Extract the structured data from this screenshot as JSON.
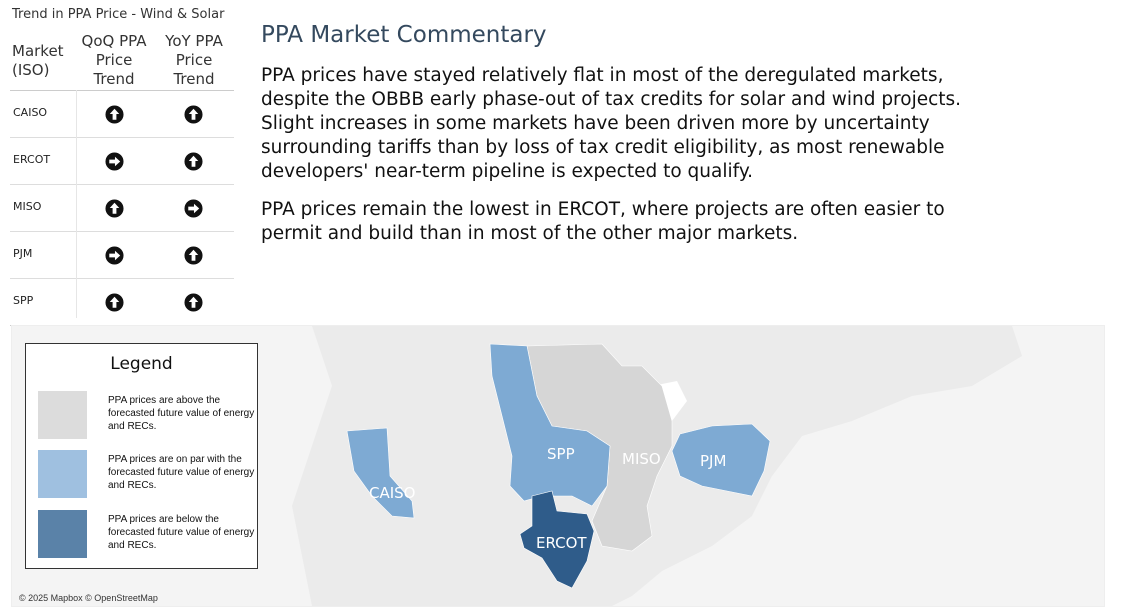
{
  "table": {
    "title": "Trend in PPA Price - Wind & Solar",
    "headers": {
      "market": "Market (ISO)",
      "qoq": "QoQ PPA Price Trend",
      "yoy": "YoY PPA Price Trend"
    },
    "rows": [
      {
        "iso": "CAISO",
        "qoq": "up",
        "yoy": "up"
      },
      {
        "iso": "ERCOT",
        "qoq": "right",
        "yoy": "up"
      },
      {
        "iso": "MISO",
        "qoq": "up",
        "yoy": "right"
      },
      {
        "iso": "PJM",
        "qoq": "right",
        "yoy": "up"
      },
      {
        "iso": "SPP",
        "qoq": "up",
        "yoy": "up"
      }
    ]
  },
  "commentary": {
    "title": "PPA Market Commentary",
    "p1": "PPA prices have stayed relatively flat in most of the deregulated markets, despite the OBBB early phase-out of tax credits for solar and wind projects.  Slight increases in some markets have been driven more by uncertainty surrounding tariffs than by loss of tax credit eligibility, as most renewable developers' near-term pipeline is expected to qualify.",
    "p2": "PPA prices remain the lowest in ERCOT, where projects are often easier to permit and build than in most of the other major markets."
  },
  "legend": {
    "title": "Legend",
    "items": [
      {
        "text": "PPA prices are above the forecasted future value of energy and RECs.",
        "color": "#dcdcdc"
      },
      {
        "text": "PPA prices are on par with the forecasted future value of energy and RECs.",
        "color": "#9fc0e0"
      },
      {
        "text": "PPA prices are below the forecasted future value of energy and RECs.",
        "color": "#5a82a8"
      }
    ]
  },
  "map": {
    "regions": [
      {
        "name": "CAISO",
        "color": "#7eaad3"
      },
      {
        "name": "SPP",
        "color": "#7eaad3"
      },
      {
        "name": "MISO",
        "color": "#d6d6d6"
      },
      {
        "name": "PJM",
        "color": "#7eaad3"
      },
      {
        "name": "ERCOT",
        "color": "#2f5c8a"
      }
    ],
    "copyright": "© 2025 Mapbox © OpenStreetMap"
  }
}
